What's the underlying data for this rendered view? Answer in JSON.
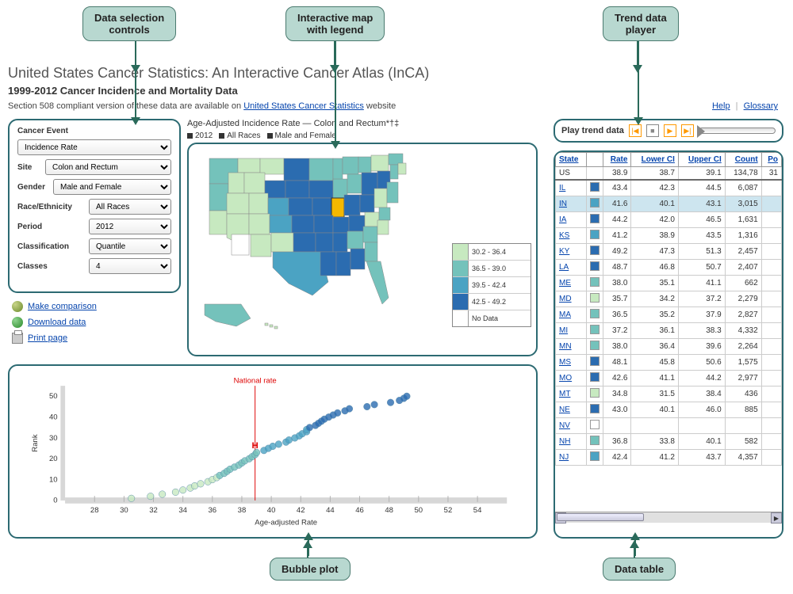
{
  "callouts": {
    "controls": "Data selection\ncontrols",
    "map": "Interactive map\nwith legend",
    "trend": "Trend data\nplayer",
    "bubble": "Bubble plot",
    "table": "Data table"
  },
  "header": {
    "title": "United States Cancer Statistics: An Interactive Cancer Atlas (InCA)",
    "subtitle": "1999-2012 Cancer Incidence and Mortality Data",
    "section_text_pre": "Section 508 compliant version of these data are available on ",
    "section_link": "United States Cancer Statistics",
    "section_text_post": " website",
    "help_link": "Help",
    "glossary_link": "Glossary"
  },
  "controls": {
    "cancer_event_label": "Cancer Event",
    "cancer_event_value": "Incidence Rate",
    "site_label": "Site",
    "site_value": "Colon and Rectum",
    "gender_label": "Gender",
    "gender_value": "Male and Female",
    "race_label": "Race/Ethnicity",
    "race_value": "All Races",
    "period_label": "Period",
    "period_value": "2012",
    "classification_label": "Classification",
    "classification_value": "Quantile",
    "classes_label": "Classes",
    "classes_value": "4"
  },
  "actions": {
    "compare": "Make comparison",
    "download": "Download data",
    "print": "Print page"
  },
  "map": {
    "title": "Age-Adjusted Incidence Rate — Colon and Rectum*†‡",
    "filters": [
      "2012",
      "All Races",
      "Male and Female"
    ],
    "legend": [
      {
        "label": "30.2 - 36.4",
        "color": "#c7e9c0"
      },
      {
        "label": "36.5 - 39.0",
        "color": "#74c2bb"
      },
      {
        "label": "39.5 - 42.4",
        "color": "#4ba3c3"
      },
      {
        "label": "42.5 - 49.2",
        "color": "#2b6cb0"
      },
      {
        "label": "No Data",
        "color": "#ffffff"
      }
    ],
    "highlight_color": "#f5b800"
  },
  "trend": {
    "label": "Play trend data"
  },
  "bubble": {
    "national_label": "National rate",
    "national_rate": 38.9,
    "xlabel": "Age-adjusted Rate",
    "ylabel": "Rank",
    "xlim": [
      26,
      56
    ],
    "ylim": [
      0,
      55
    ],
    "xticks": [
      28,
      30,
      32,
      34,
      36,
      38,
      40,
      42,
      44,
      46,
      48,
      50,
      52,
      54
    ],
    "yticks": [
      0,
      10,
      20,
      30,
      40,
      50
    ],
    "points": [
      {
        "x": 30.5,
        "y": 1,
        "c": "#c7e9c0"
      },
      {
        "x": 31.8,
        "y": 2,
        "c": "#c7e9c0"
      },
      {
        "x": 32.6,
        "y": 3,
        "c": "#c7e9c0"
      },
      {
        "x": 33.5,
        "y": 4,
        "c": "#c7e9c0"
      },
      {
        "x": 34.0,
        "y": 5,
        "c": "#c7e9c0"
      },
      {
        "x": 34.5,
        "y": 6,
        "c": "#c7e9c0"
      },
      {
        "x": 34.8,
        "y": 7,
        "c": "#c7e9c0"
      },
      {
        "x": 35.2,
        "y": 8,
        "c": "#c7e9c0"
      },
      {
        "x": 35.7,
        "y": 9,
        "c": "#c7e9c0"
      },
      {
        "x": 36.0,
        "y": 10,
        "c": "#c7e9c0"
      },
      {
        "x": 36.3,
        "y": 11,
        "c": "#c7e9c0"
      },
      {
        "x": 36.5,
        "y": 12,
        "c": "#74c2bb"
      },
      {
        "x": 36.8,
        "y": 13,
        "c": "#74c2bb"
      },
      {
        "x": 37.0,
        "y": 14,
        "c": "#74c2bb"
      },
      {
        "x": 37.2,
        "y": 15,
        "c": "#74c2bb"
      },
      {
        "x": 37.5,
        "y": 16,
        "c": "#74c2bb"
      },
      {
        "x": 37.8,
        "y": 17,
        "c": "#74c2bb"
      },
      {
        "x": 38.0,
        "y": 18,
        "c": "#74c2bb"
      },
      {
        "x": 38.2,
        "y": 19,
        "c": "#74c2bb"
      },
      {
        "x": 38.5,
        "y": 20,
        "c": "#74c2bb"
      },
      {
        "x": 38.7,
        "y": 21,
        "c": "#74c2bb"
      },
      {
        "x": 38.9,
        "y": 22,
        "c": "#74c2bb"
      },
      {
        "x": 39.0,
        "y": 23,
        "c": "#74c2bb"
      },
      {
        "x": 39.5,
        "y": 24,
        "c": "#4ba3c3"
      },
      {
        "x": 39.8,
        "y": 25,
        "c": "#4ba3c3"
      },
      {
        "x": 40.1,
        "y": 26,
        "c": "#4ba3c3"
      },
      {
        "x": 40.5,
        "y": 27,
        "c": "#4ba3c3"
      },
      {
        "x": 41.0,
        "y": 28,
        "c": "#4ba3c3"
      },
      {
        "x": 41.2,
        "y": 29,
        "c": "#4ba3c3"
      },
      {
        "x": 41.6,
        "y": 30,
        "c": "#4ba3c3"
      },
      {
        "x": 41.9,
        "y": 31,
        "c": "#4ba3c3"
      },
      {
        "x": 42.1,
        "y": 32,
        "c": "#4ba3c3"
      },
      {
        "x": 42.4,
        "y": 33,
        "c": "#4ba3c3"
      },
      {
        "x": 42.4,
        "y": 34,
        "c": "#4ba3c3"
      },
      {
        "x": 42.6,
        "y": 35,
        "c": "#2b6cb0"
      },
      {
        "x": 43.0,
        "y": 36,
        "c": "#2b6cb0"
      },
      {
        "x": 43.2,
        "y": 37,
        "c": "#2b6cb0"
      },
      {
        "x": 43.4,
        "y": 38,
        "c": "#2b6cb0"
      },
      {
        "x": 43.6,
        "y": 39,
        "c": "#2b6cb0"
      },
      {
        "x": 43.9,
        "y": 40,
        "c": "#2b6cb0"
      },
      {
        "x": 44.2,
        "y": 41,
        "c": "#2b6cb0"
      },
      {
        "x": 44.5,
        "y": 42,
        "c": "#2b6cb0"
      },
      {
        "x": 45.0,
        "y": 43,
        "c": "#2b6cb0"
      },
      {
        "x": 45.3,
        "y": 44,
        "c": "#2b6cb0"
      },
      {
        "x": 46.5,
        "y": 45,
        "c": "#2b6cb0"
      },
      {
        "x": 47.0,
        "y": 46,
        "c": "#2b6cb0"
      },
      {
        "x": 48.1,
        "y": 47,
        "c": "#2b6cb0"
      },
      {
        "x": 48.7,
        "y": 48,
        "c": "#2b6cb0"
      },
      {
        "x": 49.0,
        "y": 49,
        "c": "#2b6cb0"
      },
      {
        "x": 49.2,
        "y": 50,
        "c": "#2b6cb0"
      }
    ]
  },
  "table": {
    "columns": [
      "State",
      "",
      "Rate",
      "Lower CI",
      "Upper CI",
      "Count",
      "Po"
    ],
    "top_row": {
      "state": "US",
      "color": "",
      "rate": "38.9",
      "lci": "38.7",
      "uci": "39.1",
      "count": "134,78",
      "pop": "31"
    },
    "rows": [
      {
        "state": "IL",
        "color": "#2b6cb0",
        "rate": "43.4",
        "lci": "42.3",
        "uci": "44.5",
        "count": "6,087"
      },
      {
        "state": "IN",
        "color": "#4ba3c3",
        "rate": "41.6",
        "lci": "40.1",
        "uci": "43.1",
        "count": "3,015",
        "hl": true
      },
      {
        "state": "IA",
        "color": "#2b6cb0",
        "rate": "44.2",
        "lci": "42.0",
        "uci": "46.5",
        "count": "1,631"
      },
      {
        "state": "KS",
        "color": "#4ba3c3",
        "rate": "41.2",
        "lci": "38.9",
        "uci": "43.5",
        "count": "1,316"
      },
      {
        "state": "KY",
        "color": "#2b6cb0",
        "rate": "49.2",
        "lci": "47.3",
        "uci": "51.3",
        "count": "2,457"
      },
      {
        "state": "LA",
        "color": "#2b6cb0",
        "rate": "48.7",
        "lci": "46.8",
        "uci": "50.7",
        "count": "2,407"
      },
      {
        "state": "ME",
        "color": "#74c2bb",
        "rate": "38.0",
        "lci": "35.1",
        "uci": "41.1",
        "count": "662"
      },
      {
        "state": "MD",
        "color": "#c7e9c0",
        "rate": "35.7",
        "lci": "34.2",
        "uci": "37.2",
        "count": "2,279"
      },
      {
        "state": "MA",
        "color": "#74c2bb",
        "rate": "36.5",
        "lci": "35.2",
        "uci": "37.9",
        "count": "2,827"
      },
      {
        "state": "MI",
        "color": "#74c2bb",
        "rate": "37.2",
        "lci": "36.1",
        "uci": "38.3",
        "count": "4,332"
      },
      {
        "state": "MN",
        "color": "#74c2bb",
        "rate": "38.0",
        "lci": "36.4",
        "uci": "39.6",
        "count": "2,264"
      },
      {
        "state": "MS",
        "color": "#2b6cb0",
        "rate": "48.1",
        "lci": "45.8",
        "uci": "50.6",
        "count": "1,575"
      },
      {
        "state": "MO",
        "color": "#2b6cb0",
        "rate": "42.6",
        "lci": "41.1",
        "uci": "44.2",
        "count": "2,977"
      },
      {
        "state": "MT",
        "color": "#c7e9c0",
        "rate": "34.8",
        "lci": "31.5",
        "uci": "38.4",
        "count": "436"
      },
      {
        "state": "NE",
        "color": "#2b6cb0",
        "rate": "43.0",
        "lci": "40.1",
        "uci": "46.0",
        "count": "885"
      },
      {
        "state": "NV",
        "color": "#ffffff",
        "rate": "",
        "lci": "",
        "uci": "",
        "count": ""
      },
      {
        "state": "NH",
        "color": "#74c2bb",
        "rate": "36.8",
        "lci": "33.8",
        "uci": "40.1",
        "count": "582"
      },
      {
        "state": "NJ",
        "color": "#4ba3c3",
        "rate": "42.4",
        "lci": "41.2",
        "uci": "43.7",
        "count": "4,357"
      }
    ]
  }
}
